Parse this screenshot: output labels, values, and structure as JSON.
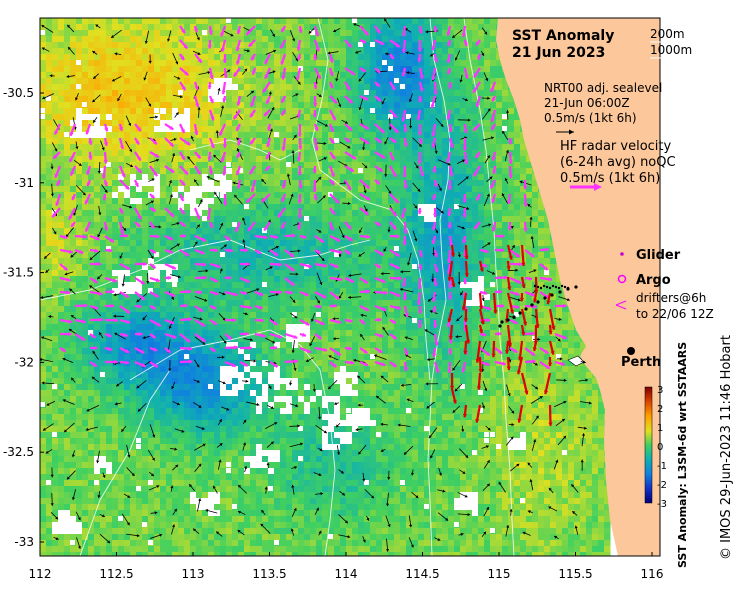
{
  "map": {
    "title_line1": "SST Anomaly",
    "title_line2": "21 Jun 2023",
    "isobaths": [
      "200m",
      "1000m"
    ],
    "model_info": [
      "NRT00 adj. sealevel",
      "21-Jun 06:00Z",
      "0.5m/s (1kt 6h)"
    ],
    "hf_radar": [
      "HF radar velocity",
      "(6-24h avg) noQC",
      "0.5m/s (1kt 6h)"
    ],
    "legend": {
      "glider": "Glider",
      "argo": "Argo",
      "drifters": [
        "drifters@6h",
        "to 22/06 12Z"
      ]
    },
    "city": "Perth",
    "lon_ticks": [
      "112",
      "112.5",
      "113",
      "113.5",
      "114",
      "114.5",
      "115",
      "115.5",
      "116"
    ],
    "lat_ticks": [
      "-30.5",
      "-31",
      "-31.5",
      "-32",
      "-32.5",
      "-33"
    ],
    "colorbar": {
      "title": "SST Anomaly: L3SM-6d wrt SSTAARS",
      "ticks": [
        "3",
        "2",
        "1",
        "0",
        "-1",
        "-2",
        "-3"
      ]
    },
    "credit": "© IMOS 29-Jun-2023 11:46 Hobart"
  },
  "colors": {
    "land": "#fcc79a",
    "model_arrows": "#000000",
    "hf_arrows": "#ff33ff",
    "radar_arrows": "#e00000",
    "contours": "#ffffff",
    "glider": "#cc00cc"
  }
}
